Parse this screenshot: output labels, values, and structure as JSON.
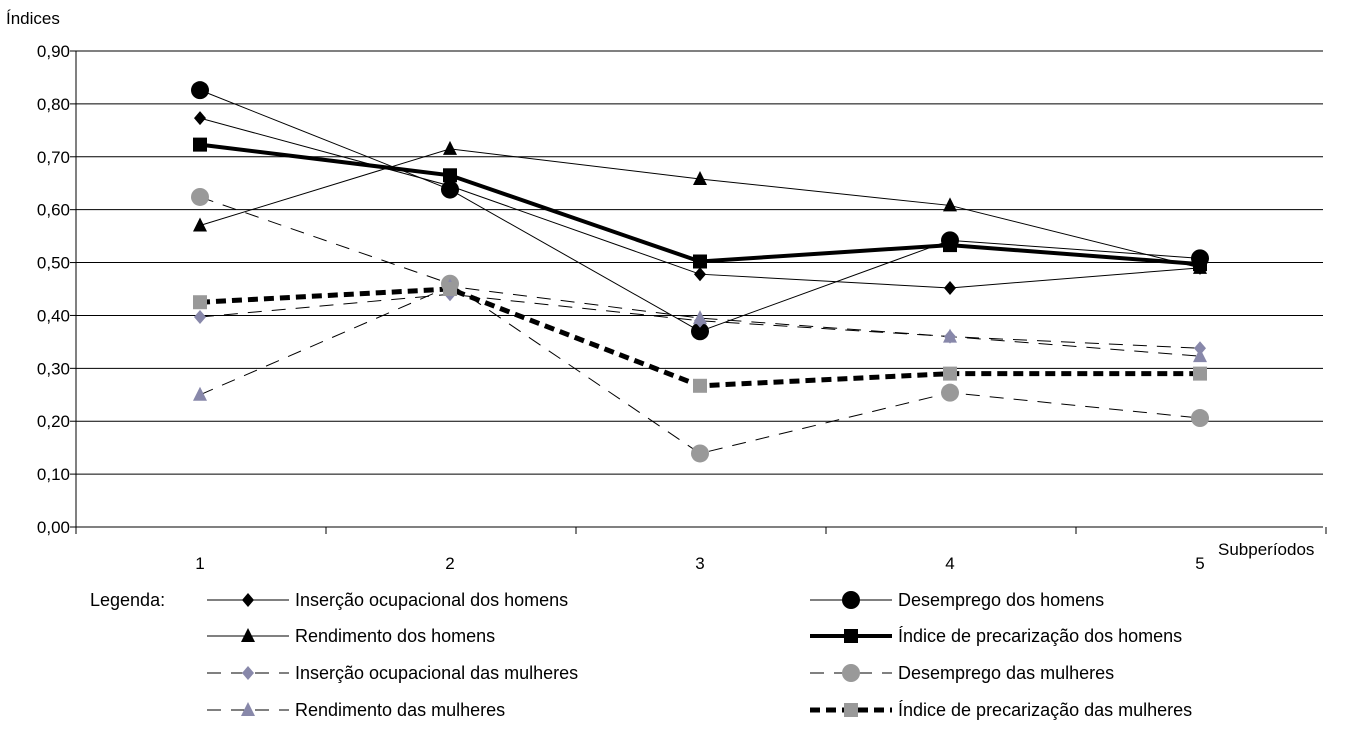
{
  "chart_data": {
    "type": "line",
    "title": "",
    "ylabel": "Índices",
    "xlabel": "Subperíodos",
    "ylim": [
      0,
      0.9
    ],
    "yticks": [
      "0,00",
      "0,10",
      "0,20",
      "0,30",
      "0,40",
      "0,50",
      "0,60",
      "0,70",
      "0,80",
      "0,90"
    ],
    "categories": [
      "1",
      "2",
      "3",
      "4",
      "5"
    ],
    "legend_title": "Legenda:",
    "legend_placement": "bottom",
    "grid": true,
    "series": [
      {
        "name": "Inserção ocupacional dos homens",
        "values": [
          0.773,
          0.645,
          0.478,
          0.452,
          0.49
        ],
        "color": "#000000",
        "dash": "solid",
        "width": 1,
        "marker": "diamond",
        "marker_color": "#000000"
      },
      {
        "name": "Desemprego dos homens",
        "values": [
          0.826,
          0.638,
          0.37,
          0.542,
          0.508
        ],
        "color": "#000000",
        "dash": "solid",
        "width": 1,
        "marker": "circle",
        "marker_color": "#000000"
      },
      {
        "name": "Rendimento dos homens",
        "values": [
          0.57,
          0.715,
          0.658,
          0.608,
          0.49
        ],
        "color": "#000000",
        "dash": "solid",
        "width": 1,
        "marker": "triangle",
        "marker_color": "#000000"
      },
      {
        "name": "Índice de precarização dos homens",
        "values": [
          0.723,
          0.665,
          0.502,
          0.533,
          0.497
        ],
        "color": "#000000",
        "dash": "solid",
        "width": 4,
        "marker": "square",
        "marker_color": "#000000"
      },
      {
        "name": "Inserção ocupacional das mulheres",
        "values": [
          0.397,
          0.44,
          0.39,
          0.36,
          0.338
        ],
        "color": "#000000",
        "dash": "dashed",
        "width": 1,
        "marker": "diamond",
        "marker_color": "#8888aa"
      },
      {
        "name": "Desemprego das mulheres",
        "values": [
          0.624,
          0.46,
          0.139,
          0.254,
          0.206
        ],
        "color": "#000000",
        "dash": "dashed",
        "width": 1,
        "marker": "circle",
        "marker_color": "#999999"
      },
      {
        "name": "Rendimento das mulheres",
        "values": [
          0.25,
          0.455,
          0.395,
          0.36,
          0.323
        ],
        "color": "#000000",
        "dash": "dashed",
        "width": 1,
        "marker": "triangle",
        "marker_color": "#8888aa"
      },
      {
        "name": "Índice de precarização das mulheres",
        "values": [
          0.425,
          0.45,
          0.267,
          0.29,
          0.29
        ],
        "color": "#000000",
        "dash": "thickdash",
        "width": 5,
        "marker": "square",
        "marker_color": "#999999"
      }
    ]
  }
}
